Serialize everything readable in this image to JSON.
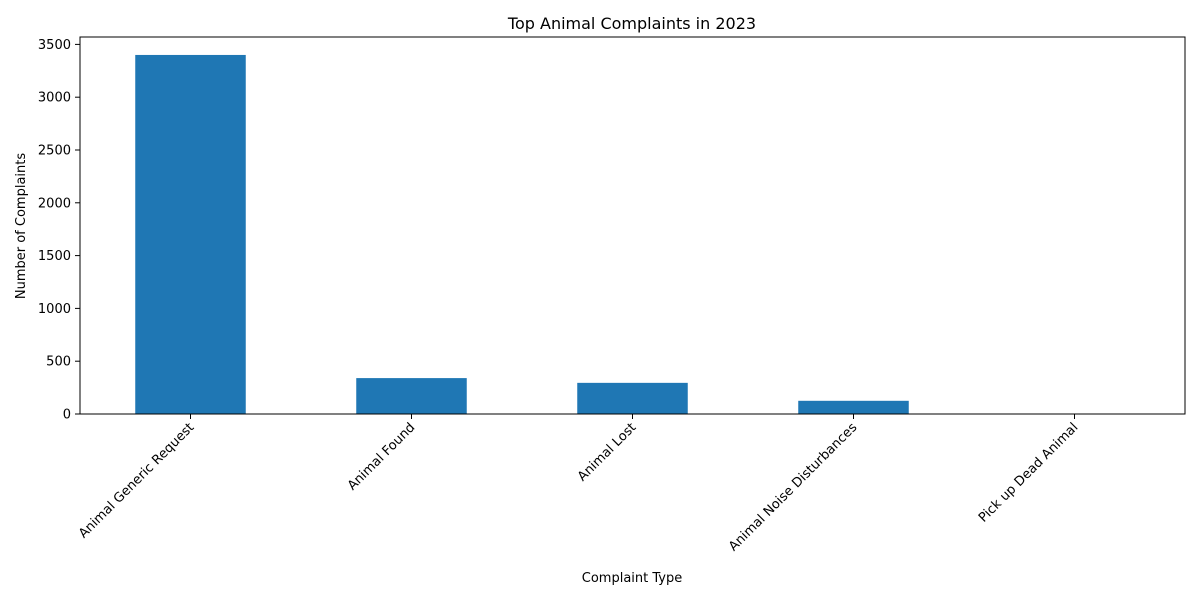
{
  "chart_data": {
    "type": "bar",
    "title": "Top Animal Complaints in 2023",
    "xlabel": "Complaint Type",
    "ylabel": "Number of Complaints",
    "categories": [
      "Animal Generic Request",
      "Animal Found",
      "Animal Lost",
      "Animal Noise Disturbances",
      "Pick up Dead Animal"
    ],
    "values": [
      3400,
      340,
      295,
      125,
      2
    ],
    "ylim": [
      0,
      3570
    ],
    "yticks": [
      0,
      500,
      1000,
      1500,
      2000,
      2500,
      3000,
      3500
    ],
    "bar_color": "#1f77b4",
    "grid": false,
    "legend": "none"
  }
}
